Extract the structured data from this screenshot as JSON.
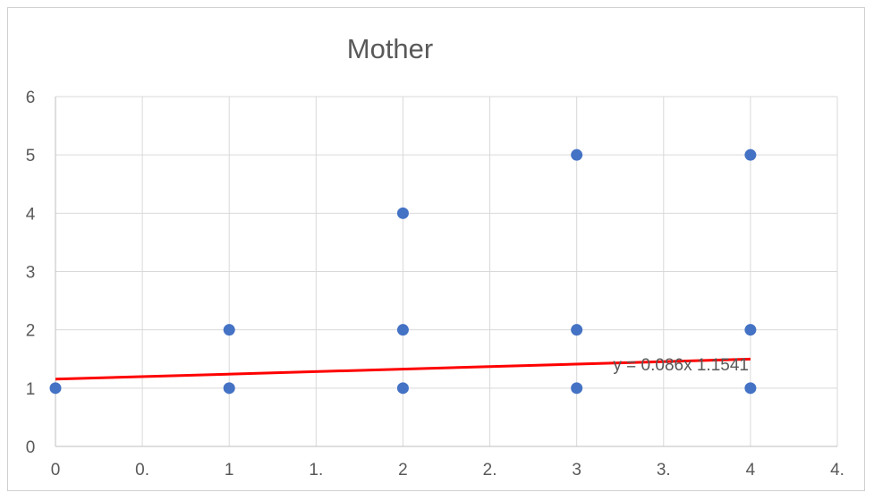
{
  "chart_data": {
    "type": "scatter",
    "title": "Mother",
    "xlabel": "",
    "ylabel": "",
    "xlim": [
      0,
      4.5
    ],
    "ylim": [
      0,
      6
    ],
    "x_ticks": [
      "0",
      "0.",
      "1",
      "1.",
      "2",
      "2.",
      "3",
      "3.",
      "4",
      "4."
    ],
    "y_ticks": [
      "0",
      "1",
      "2",
      "3",
      "4",
      "5",
      "6"
    ],
    "grid": true,
    "legend": "none",
    "series": [
      {
        "color": "#4472c4",
        "points": [
          {
            "x": 0,
            "y": 1
          },
          {
            "x": 1,
            "y": 1
          },
          {
            "x": 1,
            "y": 2
          },
          {
            "x": 2,
            "y": 1
          },
          {
            "x": 2,
            "y": 2
          },
          {
            "x": 2,
            "y": 4
          },
          {
            "x": 3,
            "y": 1
          },
          {
            "x": 3,
            "y": 2
          },
          {
            "x": 3,
            "y": 5
          },
          {
            "x": 4,
            "y": 1
          },
          {
            "x": 4,
            "y": 2
          },
          {
            "x": 4,
            "y": 5
          }
        ]
      }
    ],
    "trendline": {
      "color": "#ff0000",
      "slope": 0.086,
      "intercept": 1.1541,
      "x_range": [
        0,
        4
      ],
      "equation_label": "y = 0.086x  1.1541",
      "label_anchor": {
        "x": 3.6,
        "y": 1.4
      }
    },
    "colors": {
      "grid": "#d9d9d9",
      "text": "#595959",
      "axis": "#bfbfbf"
    }
  }
}
